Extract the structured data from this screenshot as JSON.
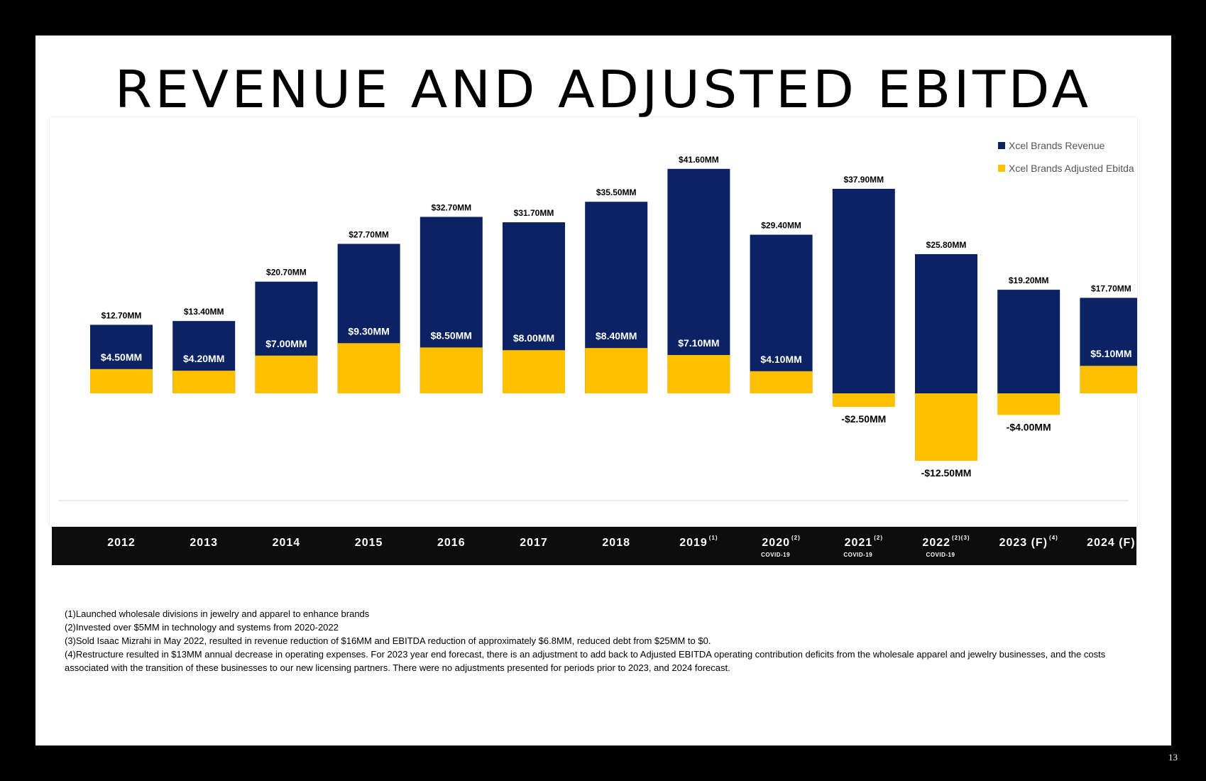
{
  "slide": {
    "title": "REVENUE AND ADJUSTED EBITDA",
    "page_number": "13"
  },
  "colors": {
    "revenue": "#0b2365",
    "ebitda": "#ffc000"
  },
  "chart_data": {
    "type": "bar",
    "title": "REVENUE AND ADJUSTED EBITDA",
    "categories": [
      "2012",
      "2013",
      "2014",
      "2015",
      "2016",
      "2017",
      "2018",
      "2019",
      "2020",
      "2021",
      "2022",
      "2023 (F)",
      "2024 (F)"
    ],
    "category_superscripts": [
      "",
      "",
      "",
      "",
      "",
      "",
      "",
      "(1)",
      "(2)",
      "(2)",
      "(2)(3)",
      "(4)",
      ""
    ],
    "category_subtitles": [
      "",
      "",
      "",
      "",
      "",
      "",
      "",
      "",
      "COVID-19",
      "COVID-19",
      "COVID-19",
      "",
      ""
    ],
    "series": [
      {
        "name": "Xcel Brands Revenue",
        "values": [
          12.7,
          13.4,
          20.7,
          27.7,
          32.7,
          31.7,
          35.5,
          41.6,
          29.4,
          37.9,
          25.8,
          19.2,
          17.7
        ],
        "labels": [
          "$12.70MM",
          "$13.40MM",
          "$20.70MM",
          "$27.70MM",
          "$32.70MM",
          "$31.70MM",
          "$35.50MM",
          "$41.60MM",
          "$29.40MM",
          "$37.90MM",
          "$25.80MM",
          "$19.20MM",
          "$17.70MM"
        ]
      },
      {
        "name": "Xcel Brands Adjusted Ebitda",
        "values": [
          4.5,
          4.2,
          7.0,
          9.3,
          8.5,
          8.0,
          8.4,
          7.1,
          4.1,
          -2.5,
          -12.5,
          -4.0,
          5.1
        ],
        "labels": [
          "$4.50MM",
          "$4.20MM",
          "$7.00MM",
          "$9.30MM",
          "$8.50MM",
          "$8.00MM",
          "$8.40MM",
          "$7.10MM",
          "$4.10MM",
          "-$2.50MM",
          "-$12.50MM",
          "-$4.00MM",
          "$5.10MM"
        ]
      }
    ],
    "overlay": true,
    "ylim": [
      -20,
      45
    ],
    "unit": "$MM",
    "legend_position": "top-right",
    "grid": false
  },
  "footnotes": [
    "(1)Launched wholesale divisions in jewelry and apparel to enhance brands",
    "(2)Invested over $5MM in technology and systems from 2020-2022",
    "(3)Sold Isaac Mizrahi in May 2022, resulted in revenue reduction of $16MM and EBITDA reduction of approximately $6.8MM, reduced debt from $25MM to $0.",
    "(4)Restructure resulted in $13MM annual decrease in operating expenses. For  2023 year end forecast,  there is an adjustment to add back to Adjusted EBITDA operating  contribution deficits from the wholesale apparel and jewelry businesses,  and the costs associated with the transition of these businesses to our new licensing partners.  There were no adjustments presented for periods prior to 2023,  and 2024 forecast."
  ]
}
